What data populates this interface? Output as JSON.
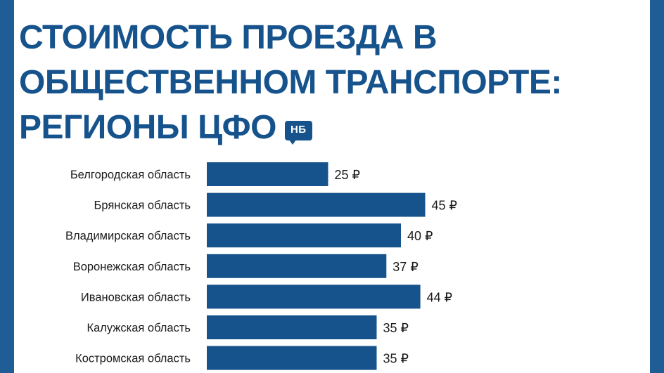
{
  "title_lines": [
    "СТОИМОСТЬ ПРОЕЗДА В",
    "ОБЩЕСТВЕННОМ ТРАНСПОРТЕ:",
    "РЕГИОНЫ ЦФО"
  ],
  "badge": "НБ",
  "colors": {
    "bar": "#16538c",
    "title": "#16538c",
    "background": "#1f5d97",
    "card": "#ffffff"
  },
  "chart_data": {
    "type": "bar",
    "orientation": "horizontal",
    "title": "СТОИМОСТЬ ПРОЕЗДА В ОБЩЕСТВЕННОМ ТРАНСПОРТЕ: РЕГИОНЫ ЦФО",
    "categories": [
      "Белгородская область",
      "Брянская область",
      "Владимирская область",
      "Воронежская область",
      "Ивановская область",
      "Калужская область",
      "Костромская область"
    ],
    "values": [
      25,
      45,
      40,
      37,
      44,
      35,
      35
    ],
    "value_labels": [
      "25 ₽",
      "45 ₽",
      "40 ₽",
      "37 ₽",
      "44 ₽",
      "35 ₽",
      "35 ₽"
    ],
    "unit": "₽",
    "grid": false,
    "legend": "none"
  }
}
